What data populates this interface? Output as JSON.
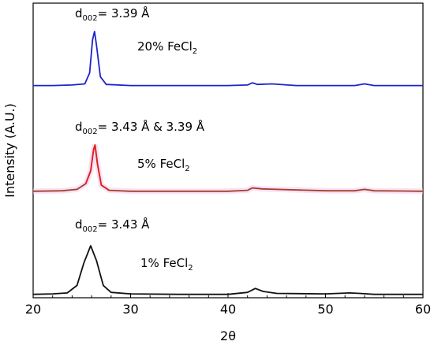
{
  "chart_data": {
    "type": "line",
    "xlabel": "2θ",
    "ylabel": "Intensity (A.U.)",
    "xlim": [
      20,
      60
    ],
    "x_ticks": [
      "20",
      "30",
      "40",
      "50",
      "60"
    ],
    "y_ticks_labeled": false,
    "grid": false,
    "legend": "none",
    "series": [
      {
        "key": "fecl2_20",
        "label_prefix": "20% FeCl",
        "label_sub": "2",
        "color": "#1f22cc",
        "annotation": {
          "prefix": "d",
          "sub": "002",
          "suffix": "= 3.39 Å"
        },
        "points": [
          [
            20,
            0.02
          ],
          [
            22,
            0.02
          ],
          [
            24,
            0.03
          ],
          [
            25.3,
            0.05
          ],
          [
            25.8,
            0.25
          ],
          [
            26.1,
            0.85
          ],
          [
            26.3,
            1.0
          ],
          [
            26.5,
            0.75
          ],
          [
            26.9,
            0.18
          ],
          [
            27.5,
            0.04
          ],
          [
            30,
            0.02
          ],
          [
            35,
            0.02
          ],
          [
            40,
            0.02
          ],
          [
            42.0,
            0.03
          ],
          [
            42.5,
            0.07
          ],
          [
            43.0,
            0.04
          ],
          [
            44.5,
            0.05
          ],
          [
            47,
            0.02
          ],
          [
            53,
            0.02
          ],
          [
            54,
            0.05
          ],
          [
            55,
            0.02
          ],
          [
            60,
            0.02
          ]
        ]
      },
      {
        "key": "fecl2_5",
        "label_prefix": "5% FeCl",
        "label_sub": "2",
        "color": "#a0402a",
        "peak_color": "#e0201c",
        "annotation": {
          "prefix": "d",
          "sub": "002",
          "suffix": "= 3.43 Å & 3.39 Å"
        },
        "points": [
          [
            20,
            0.02
          ],
          [
            23,
            0.03
          ],
          [
            24.5,
            0.06
          ],
          [
            25.4,
            0.18
          ],
          [
            25.9,
            0.45
          ],
          [
            26.2,
            0.9
          ],
          [
            26.35,
            1.0
          ],
          [
            26.6,
            0.6
          ],
          [
            27.0,
            0.15
          ],
          [
            27.8,
            0.04
          ],
          [
            30,
            0.02
          ],
          [
            35,
            0.02
          ],
          [
            40,
            0.02
          ],
          [
            42.0,
            0.04
          ],
          [
            42.5,
            0.09
          ],
          [
            43.5,
            0.07
          ],
          [
            45,
            0.06
          ],
          [
            50,
            0.03
          ],
          [
            53,
            0.03
          ],
          [
            54,
            0.06
          ],
          [
            55,
            0.03
          ],
          [
            60,
            0.02
          ]
        ]
      },
      {
        "key": "fecl2_1",
        "label_prefix": "1% FeCl",
        "label_sub": "2",
        "color": "#111111",
        "annotation": {
          "prefix": "d",
          "sub": "002",
          "suffix": "= 3.43 Å"
        },
        "points": [
          [
            20,
            0.02
          ],
          [
            22,
            0.03
          ],
          [
            23.5,
            0.05
          ],
          [
            24.5,
            0.2
          ],
          [
            25.2,
            0.65
          ],
          [
            25.9,
            1.0
          ],
          [
            26.5,
            0.7
          ],
          [
            27.2,
            0.2
          ],
          [
            28,
            0.06
          ],
          [
            30,
            0.03
          ],
          [
            35,
            0.02
          ],
          [
            40,
            0.02
          ],
          [
            42.0,
            0.06
          ],
          [
            42.8,
            0.14
          ],
          [
            43.6,
            0.08
          ],
          [
            45,
            0.04
          ],
          [
            50,
            0.03
          ],
          [
            52.5,
            0.05
          ],
          [
            53.5,
            0.04
          ],
          [
            55,
            0.02
          ],
          [
            60,
            0.02
          ]
        ]
      }
    ]
  }
}
